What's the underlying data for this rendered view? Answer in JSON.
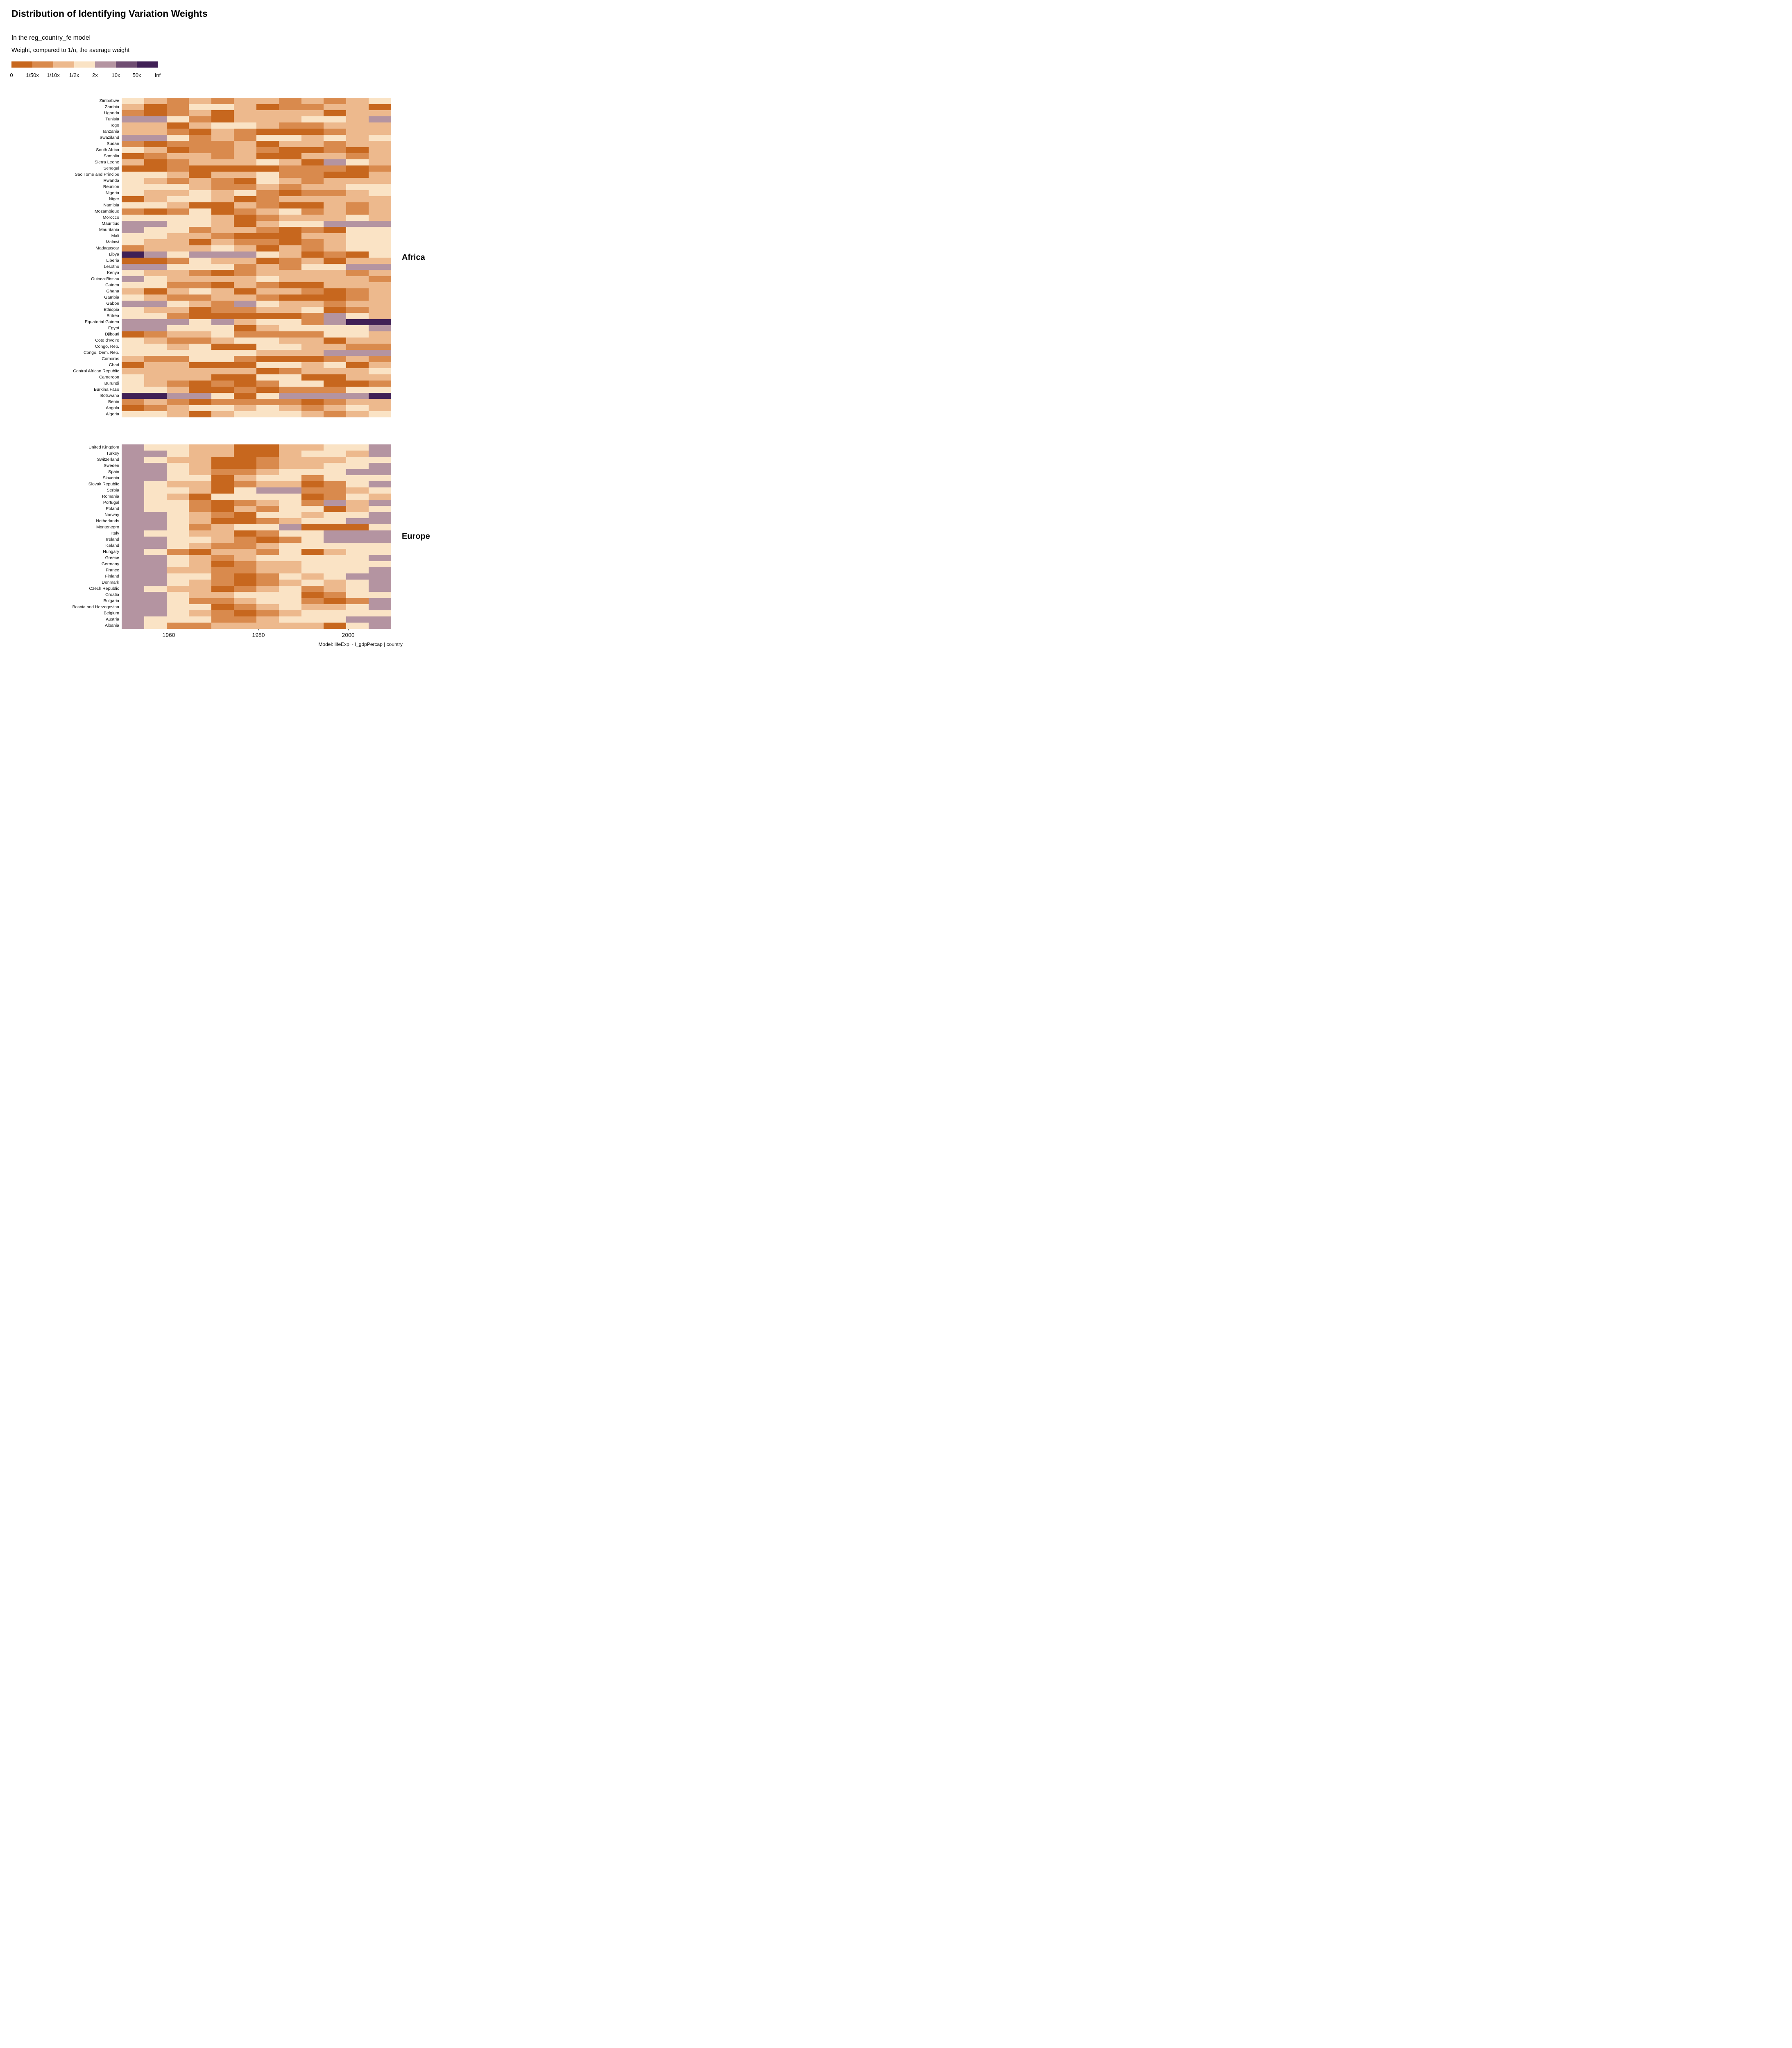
{
  "title": "Distribution of Identifying Variation Weights",
  "subtitle": "In the reg_country_fe model",
  "caption": "Model: lifeExp ~ l_gdpPercap | country",
  "legend": {
    "title": "Weight, compared to 1/n, the average weight",
    "tick_labels": [
      "0",
      "1/50x",
      "1/10x",
      "1/2x",
      "2x",
      "10x",
      "50x",
      "Inf"
    ],
    "colors": [
      "#C7671E",
      "#D98A4D",
      "#EDB98D",
      "#FAE3C5",
      "#B494A1",
      "#6F4D72",
      "#402056"
    ]
  },
  "chart_data": {
    "type": "heatmap",
    "x": [
      1952,
      1957,
      1962,
      1967,
      1972,
      1977,
      1982,
      1987,
      1992,
      1997,
      2002,
      2007
    ],
    "x_tick_labels": [
      "1960",
      "1980",
      "2000"
    ],
    "value_encoding": "Each cell value 1-7 is a weight bin relative to 1/n: 1=[0,1/50x], 2=[1/50x,1/10x], 3=[1/10x,1/2x], 4=[1/2x,2x], 5=[2x,10x], 6=[10x,50x], 7=[50x,Inf]",
    "legend_position": "top-left",
    "grid": "off",
    "panels": [
      {
        "name": "Africa",
        "countries": [
          "Zimbabwe",
          "Zambia",
          "Uganda",
          "Tunisia",
          "Togo",
          "Tanzania",
          "Swaziland",
          "Sudan",
          "South Africa",
          "Somalia",
          "Sierra Leone",
          "Senegal",
          "Sao Tome and Principe",
          "Rwanda",
          "Reunion",
          "Nigeria",
          "Niger",
          "Namibia",
          "Mozambique",
          "Morocco",
          "Mauritius",
          "Mauritania",
          "Mali",
          "Malawi",
          "Madagascar",
          "Libya",
          "Liberia",
          "Lesotho",
          "Kenya",
          "Guinea-Bissau",
          "Guinea",
          "Ghana",
          "Gambia",
          "Gabon",
          "Ethiopia",
          "Eritrea",
          "Equatorial Guinea",
          "Egypt",
          "Djibouti",
          "Cote d'Ivoire",
          "Congo, Rep.",
          "Congo, Dem. Rep.",
          "Comoros",
          "Chad",
          "Central African Republic",
          "Cameroon",
          "Burundi",
          "Burkina Faso",
          "Botswana",
          "Benin",
          "Angola",
          "Algeria"
        ],
        "values": [
          [
            4,
            3,
            2,
            3,
            2,
            3,
            3,
            2,
            3,
            2,
            3,
            4
          ],
          [
            3,
            1,
            2,
            4,
            4,
            3,
            1,
            2,
            2,
            3,
            3,
            1
          ],
          [
            2,
            1,
            2,
            3,
            1,
            3,
            3,
            3,
            3,
            1,
            3,
            3
          ],
          [
            5,
            5,
            4,
            2,
            1,
            3,
            3,
            3,
            4,
            4,
            3,
            5
          ],
          [
            3,
            3,
            1,
            3,
            4,
            4,
            3,
            2,
            2,
            3,
            3,
            3
          ],
          [
            3,
            3,
            2,
            1,
            3,
            2,
            1,
            1,
            1,
            2,
            3,
            3
          ],
          [
            5,
            5,
            4,
            2,
            3,
            2,
            4,
            4,
            3,
            4,
            3,
            4
          ],
          [
            2,
            1,
            2,
            2,
            2,
            3,
            1,
            3,
            3,
            2,
            3,
            3
          ],
          [
            4,
            3,
            1,
            2,
            2,
            3,
            2,
            1,
            1,
            2,
            1,
            3
          ],
          [
            1,
            2,
            3,
            3,
            2,
            3,
            1,
            1,
            3,
            3,
            2,
            3
          ],
          [
            3,
            1,
            2,
            3,
            3,
            3,
            4,
            3,
            1,
            5,
            4,
            3
          ],
          [
            1,
            1,
            2,
            1,
            1,
            1,
            1,
            2,
            2,
            2,
            1,
            2
          ],
          [
            4,
            4,
            3,
            1,
            3,
            3,
            4,
            2,
            2,
            1,
            1,
            3
          ],
          [
            4,
            3,
            2,
            3,
            2,
            1,
            4,
            3,
            2,
            3,
            3,
            3
          ],
          [
            4,
            4,
            4,
            3,
            2,
            2,
            3,
            2,
            3,
            3,
            4,
            4
          ],
          [
            4,
            3,
            3,
            4,
            3,
            4,
            2,
            1,
            2,
            2,
            3,
            4
          ],
          [
            1,
            3,
            4,
            4,
            3,
            1,
            2,
            3,
            3,
            3,
            3,
            3
          ],
          [
            4,
            4,
            3,
            1,
            1,
            3,
            2,
            1,
            1,
            3,
            2,
            3
          ],
          [
            2,
            1,
            2,
            4,
            1,
            2,
            3,
            4,
            2,
            3,
            2,
            3
          ],
          [
            4,
            4,
            4,
            4,
            3,
            1,
            2,
            3,
            3,
            3,
            4,
            3
          ],
          [
            5,
            5,
            4,
            4,
            3,
            1,
            3,
            4,
            4,
            5,
            5,
            5
          ],
          [
            5,
            4,
            4,
            2,
            3,
            3,
            2,
            1,
            2,
            1,
            4,
            4
          ],
          [
            4,
            4,
            3,
            3,
            2,
            1,
            1,
            1,
            3,
            3,
            4,
            4
          ],
          [
            4,
            3,
            3,
            1,
            3,
            2,
            2,
            1,
            2,
            3,
            4,
            4
          ],
          [
            2,
            3,
            3,
            3,
            4,
            3,
            1,
            3,
            2,
            3,
            4,
            4
          ],
          [
            7,
            5,
            4,
            5,
            5,
            5,
            4,
            3,
            1,
            2,
            1,
            4
          ],
          [
            1,
            1,
            2,
            4,
            3,
            3,
            1,
            2,
            3,
            1,
            3,
            3
          ],
          [
            5,
            5,
            4,
            4,
            4,
            2,
            3,
            2,
            4,
            4,
            5,
            5
          ],
          [
            4,
            3,
            3,
            2,
            1,
            2,
            3,
            3,
            3,
            3,
            2,
            3
          ],
          [
            5,
            4,
            3,
            3,
            3,
            3,
            4,
            3,
            3,
            3,
            3,
            2
          ],
          [
            4,
            4,
            2,
            2,
            1,
            3,
            2,
            1,
            1,
            3,
            3,
            3
          ],
          [
            3,
            1,
            3,
            4,
            3,
            1,
            3,
            3,
            2,
            1,
            2,
            3
          ],
          [
            4,
            3,
            2,
            2,
            3,
            3,
            2,
            1,
            1,
            1,
            2,
            3
          ],
          [
            5,
            5,
            4,
            3,
            2,
            5,
            4,
            3,
            3,
            2,
            3,
            3
          ],
          [
            4,
            3,
            3,
            1,
            2,
            2,
            3,
            3,
            4,
            1,
            2,
            3
          ],
          [
            4,
            4,
            2,
            1,
            1,
            1,
            1,
            1,
            2,
            5,
            4,
            3
          ],
          [
            5,
            5,
            5,
            4,
            5,
            3,
            4,
            4,
            2,
            5,
            7,
            7
          ],
          [
            5,
            5,
            4,
            4,
            4,
            1,
            3,
            4,
            4,
            4,
            4,
            5
          ],
          [
            1,
            2,
            3,
            3,
            4,
            2,
            2,
            2,
            2,
            4,
            4,
            3
          ],
          [
            4,
            3,
            2,
            2,
            3,
            4,
            4,
            3,
            3,
            1,
            3,
            3
          ],
          [
            4,
            4,
            3,
            4,
            1,
            1,
            4,
            4,
            3,
            3,
            2,
            2
          ],
          [
            4,
            4,
            4,
            4,
            4,
            4,
            3,
            3,
            3,
            5,
            5,
            5
          ],
          [
            3,
            2,
            2,
            4,
            4,
            2,
            1,
            1,
            1,
            2,
            3,
            2
          ],
          [
            1,
            3,
            3,
            1,
            1,
            1,
            4,
            4,
            3,
            4,
            1,
            3
          ],
          [
            3,
            3,
            3,
            3,
            3,
            3,
            1,
            2,
            3,
            3,
            3,
            4
          ],
          [
            4,
            3,
            3,
            3,
            1,
            1,
            4,
            4,
            1,
            1,
            3,
            3
          ],
          [
            4,
            3,
            2,
            1,
            2,
            1,
            2,
            4,
            4,
            1,
            1,
            2
          ],
          [
            4,
            4,
            3,
            1,
            1,
            2,
            1,
            2,
            2,
            2,
            4,
            4
          ],
          [
            7,
            7,
            5,
            5,
            4,
            1,
            4,
            5,
            5,
            5,
            5,
            7
          ],
          [
            2,
            3,
            2,
            1,
            2,
            2,
            2,
            2,
            1,
            2,
            3,
            3
          ],
          [
            1,
            2,
            3,
            4,
            4,
            3,
            4,
            3,
            2,
            3,
            4,
            3
          ],
          [
            4,
            4,
            3,
            1,
            3,
            4,
            4,
            4,
            3,
            2,
            3,
            4
          ]
        ]
      },
      {
        "name": "Europe",
        "countries": [
          "United Kingdom",
          "Turkey",
          "Switzerland",
          "Sweden",
          "Spain",
          "Slovenia",
          "Slovak Republic",
          "Serbia",
          "Romania",
          "Portugal",
          "Poland",
          "Norway",
          "Netherlands",
          "Montenegro",
          "Italy",
          "Ireland",
          "Iceland",
          "Hungary",
          "Greece",
          "Germany",
          "France",
          "Finland",
          "Denmark",
          "Czech Republic",
          "Croatia",
          "Bulgaria",
          "Bosnia and Herzegovina",
          "Belgium",
          "Austria",
          "Albania"
        ],
        "values": [
          [
            5,
            4,
            4,
            3,
            3,
            1,
            1,
            3,
            3,
            4,
            4,
            5
          ],
          [
            5,
            5,
            4,
            3,
            3,
            1,
            1,
            3,
            4,
            4,
            3,
            5
          ],
          [
            5,
            4,
            3,
            3,
            1,
            1,
            2,
            3,
            3,
            3,
            4,
            4
          ],
          [
            5,
            5,
            4,
            3,
            1,
            1,
            2,
            3,
            3,
            4,
            4,
            5
          ],
          [
            5,
            5,
            4,
            3,
            2,
            2,
            3,
            4,
            4,
            4,
            5,
            5
          ],
          [
            5,
            5,
            4,
            4,
            1,
            3,
            4,
            4,
            2,
            4,
            4,
            4
          ],
          [
            5,
            4,
            3,
            3,
            1,
            2,
            3,
            3,
            1,
            2,
            4,
            5
          ],
          [
            5,
            4,
            4,
            3,
            1,
            4,
            5,
            5,
            2,
            2,
            3,
            4
          ],
          [
            5,
            4,
            3,
            1,
            4,
            4,
            4,
            4,
            1,
            2,
            4,
            3
          ],
          [
            5,
            4,
            4,
            2,
            1,
            2,
            3,
            4,
            2,
            5,
            3,
            5
          ],
          [
            5,
            4,
            4,
            2,
            1,
            3,
            2,
            4,
            4,
            1,
            3,
            4
          ],
          [
            5,
            5,
            4,
            3,
            2,
            1,
            4,
            4,
            3,
            4,
            4,
            5
          ],
          [
            5,
            5,
            4,
            3,
            1,
            1,
            2,
            3,
            4,
            4,
            5,
            5
          ],
          [
            5,
            5,
            4,
            2,
            3,
            4,
            4,
            5,
            1,
            1,
            1,
            4
          ],
          [
            5,
            4,
            4,
            3,
            3,
            1,
            2,
            4,
            4,
            5,
            5,
            5
          ],
          [
            5,
            5,
            4,
            4,
            3,
            2,
            1,
            2,
            4,
            5,
            5,
            5
          ],
          [
            5,
            5,
            4,
            3,
            2,
            2,
            3,
            4,
            4,
            4,
            4,
            4
          ],
          [
            5,
            4,
            2,
            1,
            3,
            3,
            2,
            4,
            1,
            3,
            4,
            4
          ],
          [
            5,
            5,
            4,
            3,
            2,
            3,
            4,
            4,
            4,
            4,
            4,
            5
          ],
          [
            5,
            5,
            4,
            3,
            1,
            2,
            3,
            3,
            4,
            4,
            4,
            4
          ],
          [
            5,
            5,
            3,
            3,
            2,
            2,
            3,
            3,
            4,
            4,
            4,
            5
          ],
          [
            5,
            5,
            4,
            4,
            2,
            1,
            2,
            4,
            3,
            4,
            5,
            5
          ],
          [
            5,
            5,
            4,
            3,
            2,
            1,
            2,
            3,
            4,
            3,
            4,
            5
          ],
          [
            5,
            4,
            3,
            3,
            1,
            2,
            3,
            4,
            2,
            3,
            4,
            5
          ],
          [
            5,
            5,
            4,
            3,
            3,
            4,
            4,
            4,
            1,
            2,
            4,
            4
          ],
          [
            5,
            5,
            4,
            2,
            2,
            3,
            4,
            4,
            2,
            1,
            2,
            5
          ],
          [
            5,
            5,
            4,
            4,
            1,
            2,
            3,
            4,
            3,
            3,
            4,
            5
          ],
          [
            5,
            5,
            4,
            3,
            2,
            1,
            2,
            3,
            4,
            4,
            4,
            4
          ],
          [
            5,
            4,
            4,
            4,
            2,
            2,
            3,
            4,
            4,
            4,
            5,
            5
          ],
          [
            5,
            4,
            2,
            2,
            3,
            3,
            3,
            3,
            3,
            1,
            4,
            5
          ]
        ]
      }
    ]
  }
}
